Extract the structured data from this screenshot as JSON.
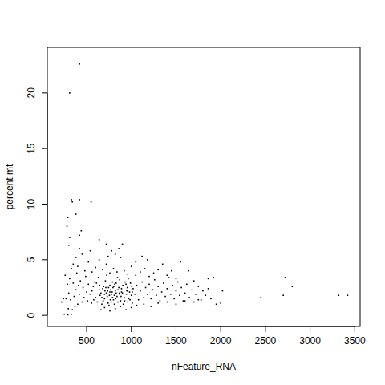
{
  "chart_data": {
    "type": "scatter",
    "x_label": "nFeature_RNA",
    "y_label": "percent.mt",
    "color": "#000000",
    "marker": "point",
    "xlim": [
      60,
      3560
    ],
    "ylim": [
      -1,
      24.1
    ],
    "xticks": [
      500,
      1000,
      1500,
      2000,
      2500,
      3000,
      3500
    ],
    "yticks": [
      0,
      5,
      10,
      15,
      20
    ],
    "x": [
      620,
      650,
      680,
      700,
      720,
      740,
      760,
      780,
      800,
      820,
      840,
      860,
      880,
      900,
      920,
      940,
      960,
      980,
      1000,
      1020,
      610,
      640,
      670,
      690,
      710,
      730,
      750,
      770,
      790,
      810,
      830,
      850,
      870,
      890,
      910,
      930,
      950,
      970,
      990,
      1010,
      600,
      630,
      660,
      685,
      705,
      725,
      745,
      765,
      785,
      805,
      825,
      845,
      865,
      885,
      905,
      925,
      945,
      965,
      985,
      1005,
      560,
      580,
      590,
      555,
      575,
      540,
      520,
      510,
      500,
      490,
      470,
      460,
      450,
      430,
      420,
      410,
      400,
      390,
      380,
      370,
      360,
      350,
      340,
      330,
      320,
      310,
      300,
      295,
      285,
      270,
      260,
      350,
      380,
      400,
      450,
      480,
      520,
      560,
      600,
      640,
      680,
      720,
      760,
      800,
      840,
      880,
      920,
      960,
      1000,
      1050,
      1040,
      1060,
      1080,
      1100,
      1120,
      1140,
      1160,
      1180,
      1200,
      1220,
      1240,
      1260,
      1280,
      1300,
      1320,
      1340,
      1360,
      1380,
      1400,
      1420,
      1440,
      1460,
      1480,
      1500,
      1520,
      1540,
      1560,
      1580,
      1600,
      1620,
      1650,
      1680,
      1700,
      1720,
      1750,
      1780,
      1800,
      1830,
      1860,
      1890,
      1050,
      1100,
      1150,
      1200,
      1250,
      1300,
      1400,
      1450,
      1500,
      1120,
      1180,
      1060,
      1140,
      1220,
      1300,
      1400,
      1500,
      1600,
      1700,
      1750,
      820,
      760,
      700,
      880,
      940,
      660,
      1000,
      720,
      780,
      860,
      820,
      740,
      700,
      760,
      790,
      810,
      830,
      850,
      795,
      775,
      815,
      755,
      735,
      870,
      890,
      715,
      670,
      645,
      955,
      1010,
      420,
      310,
      330,
      340,
      420,
      550,
      380,
      290,
      280,
      440,
      420,
      310,
      640,
      900,
      300,
      420,
      540,
      1350,
      1550,
      1640,
      1860,
      1920,
      2020,
      2000,
      1950,
      2450,
      2700,
      2720,
      2800,
      3320,
      3420,
      250,
      290,
      330,
      220,
      240
    ],
    "values": [
      1.2,
      1.8,
      2.4,
      1.5,
      2.0,
      1.1,
      2.7,
      1.9,
      1.4,
      2.2,
      1.7,
      2.5,
      1.3,
      2.0,
      1.6,
      2.8,
      1.2,
      2.1,
      1.8,
      2.4,
      2.9,
      2.3,
      1.0,
      2.6,
      3.1,
      1.7,
      0.9,
      2.3,
      3.0,
      1.0,
      2.9,
      1.2,
      3.2,
      2.4,
      1.0,
      3.0,
      2.2,
      1.5,
      2.9,
      1.1,
      1.6,
      3.4,
      2.0,
      1.3,
      2.2,
      3.6,
      2.5,
      1.4,
      2.1,
      2.6,
      1.5,
      3.4,
      2.0,
      1.7,
      2.7,
      1.3,
      1.9,
      3.3,
      1.4,
      2.6,
      2.2,
      1.4,
      3.0,
      1.1,
      2.6,
      1.9,
      2.8,
      1.3,
      2.1,
      3.5,
      1.6,
      2.5,
      1.2,
      3.1,
      1.9,
      2.7,
      1.0,
      3.8,
      2.3,
      0.8,
      1.7,
      2.9,
      0.5,
      4.2,
      1.4,
      3.3,
      2.0,
      0.6,
      2.8,
      1.5,
      3.6,
      4.6,
      5.2,
      4.4,
      5.5,
      4.0,
      4.8,
      3.9,
      4.3,
      5.0,
      4.1,
      4.6,
      3.8,
      4.2,
      3.9,
      5.2,
      4.0,
      3.7,
      4.4,
      3.6,
      1.9,
      2.7,
      1.4,
      2.2,
      3.0,
      1.6,
      2.5,
      1.9,
      2.8,
      1.5,
      2.3,
      3.2,
      1.8,
      2.6,
      1.3,
      2.1,
      2.9,
      1.7,
      2.4,
      3.4,
      1.9,
      2.7,
      1.5,
      2.2,
      3.0,
      1.8,
      2.5,
      1.3,
      2.0,
      2.8,
      1.6,
      2.3,
      3.1,
      1.9,
      2.6,
      1.4,
      2.2,
      1.8,
      2.4,
      1.5,
      4.8,
      3.9,
      4.2,
      3.5,
      3.8,
      4.1,
      3.6,
      4.0,
      3.3,
      5.3,
      5.0,
      0.9,
      1.0,
      0.8,
      1.1,
      1.2,
      1.0,
      1.3,
      1.2,
      1.4,
      0.6,
      0.4,
      0.7,
      0.8,
      0.5,
      0.5,
      0.7,
      6.4,
      5.8,
      6.0,
      5.5,
      5.3,
      1.9,
      2.1,
      1.6,
      1.8,
      2.0,
      2.3,
      2.5,
      1.2,
      2.8,
      1.8,
      2.2,
      1.9,
      2.1,
      2.5,
      1.6,
      2.7,
      2.5,
      2.1,
      22.6,
      20.0,
      10.4,
      10.2,
      10.4,
      10.2,
      9.1,
      8.8,
      8.0,
      7.6,
      7.2,
      7.0,
      6.8,
      6.4,
      6.3,
      6.0,
      5.8,
      4.6,
      4.8,
      4.0,
      3.3,
      3.4,
      2.2,
      1.1,
      1.0,
      1.6,
      1.8,
      3.4,
      2.6,
      1.8,
      1.8,
      0.1,
      0.05,
      0.1,
      1.2,
      1.5
    ]
  }
}
